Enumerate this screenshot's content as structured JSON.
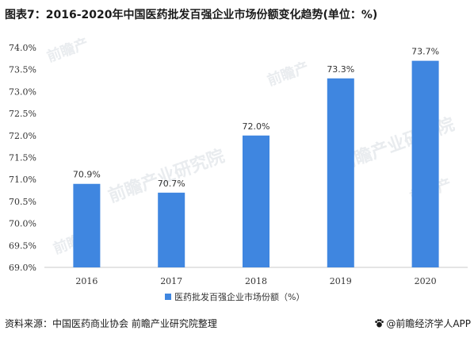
{
  "title": "图表7：2016-2020年中国医药批发百强企业市场份额变化趋势(单位：%)",
  "footer": {
    "source": "资料来源：中国医药商业协会 前瞻产业研究院整理",
    "brand": "@前瞻经济学人APP",
    "brand_icon": "paw-logo-icon"
  },
  "watermark": {
    "text": "前瞻产业研究院",
    "short_text": "前瞻产"
  },
  "colors": {
    "bar": "#3f86e0",
    "axis": "#c8c8c8",
    "text": "#333333",
    "watermark": "#e9ecef"
  },
  "chart_data": {
    "type": "bar",
    "categories": [
      "2016",
      "2017",
      "2018",
      "2019",
      "2020"
    ],
    "series": [
      {
        "name": "医药批发百强企业市场份额（%）",
        "values": [
          70.9,
          70.7,
          72.0,
          73.3,
          73.7
        ]
      }
    ],
    "data_labels": [
      "70.9%",
      "70.7%",
      "72.0%",
      "73.3%",
      "73.7%"
    ],
    "ylim": [
      69.0,
      74.0
    ],
    "yticks": [
      69.0,
      69.5,
      70.0,
      70.5,
      71.0,
      71.5,
      72.0,
      72.5,
      73.0,
      73.5,
      74.0
    ],
    "ytick_labels": [
      "69.0%",
      "69.5%",
      "70.0%",
      "70.5%",
      "71.0%",
      "71.5%",
      "72.0%",
      "72.5%",
      "73.0%",
      "73.5%",
      "74.0%"
    ],
    "xlabel": "",
    "ylabel": "",
    "grid": false,
    "legend_position": "bottom-center"
  }
}
